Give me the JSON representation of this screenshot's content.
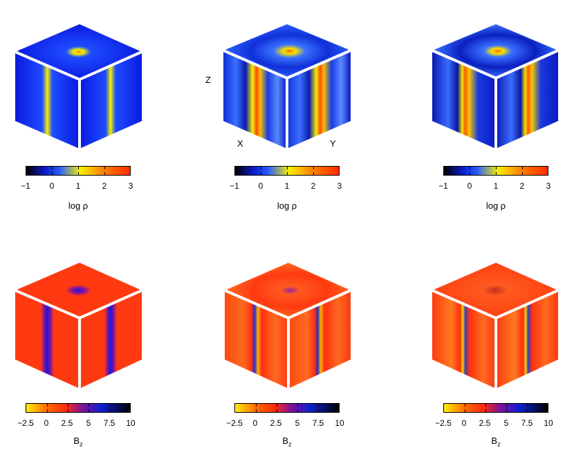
{
  "axes": {
    "z": "Z",
    "x": "X",
    "y": "Y"
  },
  "colorbars": {
    "density": {
      "label": "log ρ",
      "ticks": [
        "−1",
        "0",
        "1",
        "2",
        "3"
      ],
      "colors": [
        "#000000",
        "#0a1acc",
        "#2a5cff",
        "#f4f000",
        "#ff8a00",
        "#ff2a00"
      ]
    },
    "field": {
      "label_base": "B",
      "label_sub": "z",
      "ticks": [
        "−2.5",
        "0",
        "2.5",
        "5",
        "7.5",
        "10"
      ],
      "colors": [
        "#ffee00",
        "#ff6a00",
        "#ff2a10",
        "#7a10a0",
        "#1020d0",
        "#000000"
      ]
    }
  },
  "panels": [
    {
      "row": "density",
      "style": "smooth"
    },
    {
      "row": "density",
      "style": "turbulent"
    },
    {
      "row": "density",
      "style": "turbulent"
    },
    {
      "row": "field",
      "style": "smooth"
    },
    {
      "row": "field",
      "style": "turbulent"
    },
    {
      "row": "field",
      "style": "turbulent"
    }
  ]
}
